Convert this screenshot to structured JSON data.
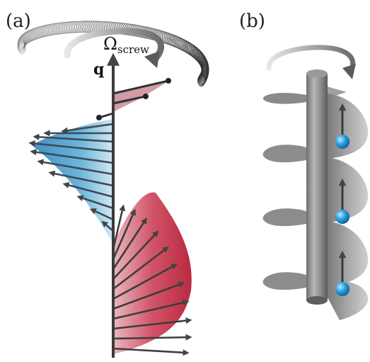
{
  "panels": {
    "a": {
      "label": "(a)"
    },
    "b": {
      "label": "(b)"
    }
  },
  "axis_label": "q",
  "rotation_label": {
    "symbol": "Ω",
    "subscript": "screw"
  },
  "colors": {
    "blue": "#4a9cc8",
    "red": "#c0283e",
    "arrow": "#4a4a4a",
    "axis": "#3a3a3a",
    "screw": "#8c8c8c",
    "ball": "#2a9fe0"
  }
}
